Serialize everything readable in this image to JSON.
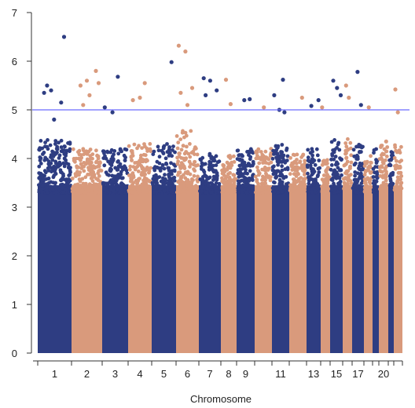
{
  "chart_data": {
    "type": "scatter",
    "title": "",
    "xlabel": "Chromosome",
    "ylabel": "",
    "ylim": [
      0,
      7
    ],
    "y_ticks": [
      0,
      1,
      2,
      3,
      4,
      5,
      6,
      7
    ],
    "x_tick_labels": [
      "1",
      "2",
      "3",
      "4",
      "5",
      "6",
      "7",
      "8",
      "9",
      "11",
      "13",
      "15",
      "17",
      "20"
    ],
    "chromosomes": [
      "1",
      "2",
      "3",
      "4",
      "5",
      "6",
      "7",
      "8",
      "9",
      "10",
      "11",
      "12",
      "13",
      "14",
      "15",
      "16",
      "17",
      "18",
      "19",
      "20",
      "21",
      "22"
    ],
    "threshold": 5.0,
    "colors": {
      "odd": "#2e3d82",
      "even": "#d99a7c",
      "threshold": "#6b6bff",
      "axis": "#333333"
    },
    "dense_top": [
      4.4,
      4.2,
      4.2,
      4.3,
      4.3,
      4.6,
      4.1,
      4.1,
      4.2,
      4.2,
      4.3,
      4.1,
      4.2,
      4.0,
      4.4,
      4.4,
      4.3,
      4.1,
      4.2,
      4.3,
      4.2,
      4.3
    ],
    "peak_points": [
      {
        "chr": "1",
        "y": 5.4
      },
      {
        "chr": "1",
        "y": 5.15
      },
      {
        "chr": "1",
        "y": 5.35
      },
      {
        "chr": "1",
        "y": 4.8
      },
      {
        "chr": "1",
        "y": 6.5
      },
      {
        "chr": "1",
        "y": 5.5
      },
      {
        "chr": "2",
        "y": 5.6
      },
      {
        "chr": "2",
        "y": 5.8
      },
      {
        "chr": "2",
        "y": 5.5
      },
      {
        "chr": "2",
        "y": 5.3
      },
      {
        "chr": "2",
        "y": 5.55
      },
      {
        "chr": "2",
        "y": 5.1
      },
      {
        "chr": "3",
        "y": 5.68
      },
      {
        "chr": "3",
        "y": 5.05
      },
      {
        "chr": "3",
        "y": 4.95
      },
      {
        "chr": "4",
        "y": 5.55
      },
      {
        "chr": "4",
        "y": 5.2
      },
      {
        "chr": "4",
        "y": 5.25
      },
      {
        "chr": "5",
        "y": 5.98
      },
      {
        "chr": "6",
        "y": 6.32
      },
      {
        "chr": "6",
        "y": 6.2
      },
      {
        "chr": "6",
        "y": 5.45
      },
      {
        "chr": "6",
        "y": 5.35
      },
      {
        "chr": "6",
        "y": 5.1
      },
      {
        "chr": "7",
        "y": 5.65
      },
      {
        "chr": "7",
        "y": 5.6
      },
      {
        "chr": "7",
        "y": 5.4
      },
      {
        "chr": "7",
        "y": 5.3
      },
      {
        "chr": "8",
        "y": 5.62
      },
      {
        "chr": "8",
        "y": 5.12
      },
      {
        "chr": "9",
        "y": 5.2
      },
      {
        "chr": "9",
        "y": 5.22
      },
      {
        "chr": "10",
        "y": 5.05
      },
      {
        "chr": "11",
        "y": 5.62
      },
      {
        "chr": "11",
        "y": 5.3
      },
      {
        "chr": "11",
        "y": 5.0
      },
      {
        "chr": "11",
        "y": 4.95
      },
      {
        "chr": "12",
        "y": 5.25
      },
      {
        "chr": "13",
        "y": 5.2
      },
      {
        "chr": "13",
        "y": 5.08
      },
      {
        "chr": "14",
        "y": 5.05
      },
      {
        "chr": "15",
        "y": 5.6
      },
      {
        "chr": "15",
        "y": 5.45
      },
      {
        "chr": "15",
        "y": 5.3
      },
      {
        "chr": "16",
        "y": 5.5
      },
      {
        "chr": "16",
        "y": 5.25
      },
      {
        "chr": "17",
        "y": 5.78
      },
      {
        "chr": "17",
        "y": 5.1
      },
      {
        "chr": "18",
        "y": 5.05
      },
      {
        "chr": "20",
        "y": 4.35
      },
      {
        "chr": "22",
        "y": 5.42
      },
      {
        "chr": "22",
        "y": 4.95
      }
    ]
  }
}
